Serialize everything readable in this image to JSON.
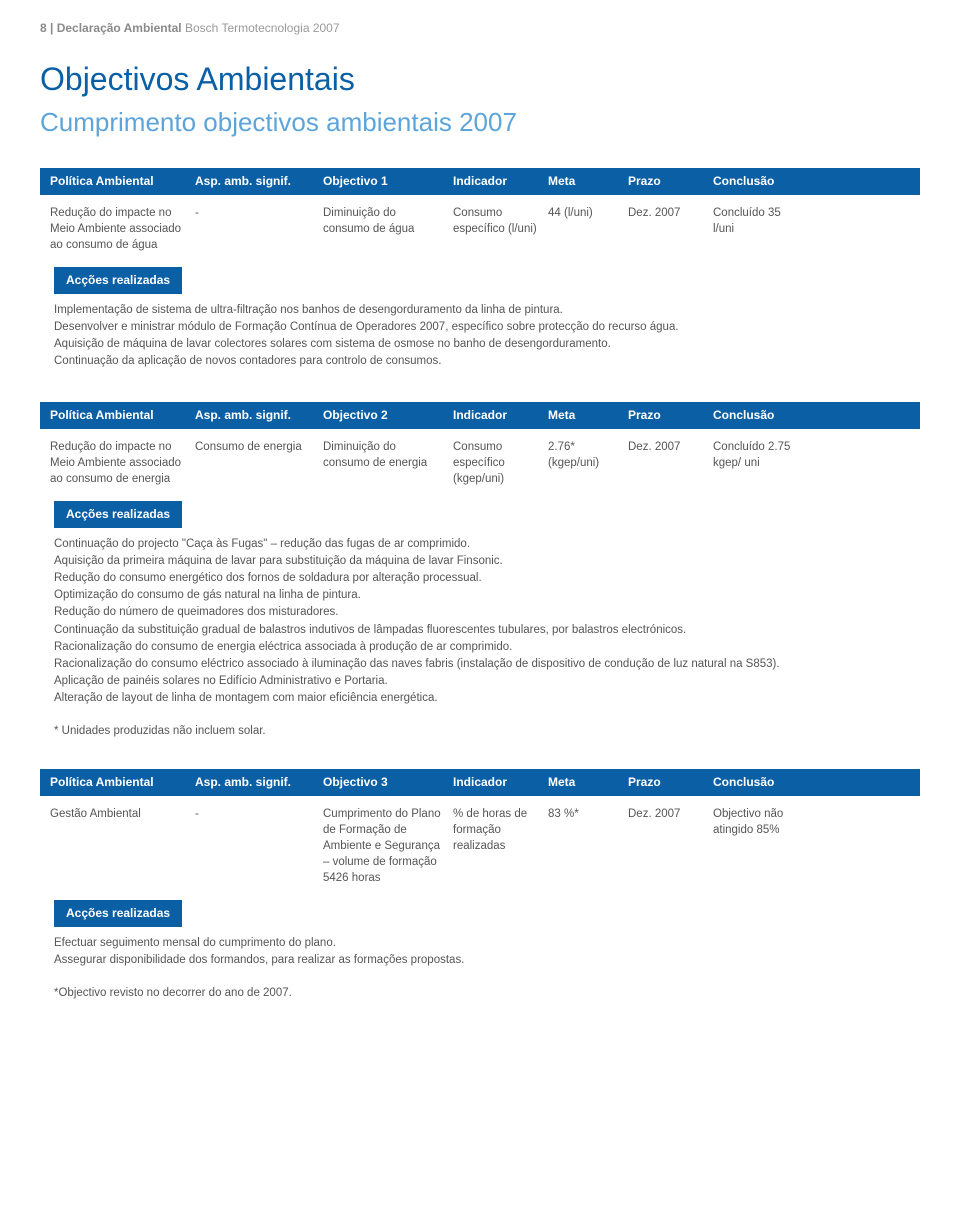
{
  "colors": {
    "header_bg": "#0a5fa5",
    "header_text": "#ffffff",
    "title_color": "#0a5fa5",
    "subtitle_color": "#5da5d8",
    "body_text": "#555555",
    "page_header_text": "#9a9a9a"
  },
  "page_header": {
    "prefix": "8 | Declaração Ambiental",
    "suffix": " Bosch Termotecnologia 2007"
  },
  "title": "Objectivos Ambientais",
  "subtitle": "Cumprimento objectivos ambientais 2007",
  "column_labels": {
    "politica": "Política Ambiental",
    "asp": "Asp. amb. signif.",
    "indicador": "Indicador",
    "meta": "Meta",
    "prazo": "Prazo",
    "conclusao": "Conclusão"
  },
  "actions_label": "Acções realizadas",
  "objectives": [
    {
      "obj_label": "Objectivo 1",
      "politica": "Redução do impacte no Meio Ambiente associado ao consumo de água",
      "asp": "-",
      "objectivo": "Diminuição do consumo de água",
      "indicador": "Consumo específico (l/uni)",
      "meta": "44 (l/uni)",
      "prazo": "Dez. 2007",
      "conclusao": "Concluído 35 l/uni",
      "actions": [
        "Implementação de sistema de ultra-filtração nos banhos de desengorduramento da linha de pintura.",
        "Desenvolver e ministrar módulo de Formação Contínua de Operadores 2007, específico sobre protecção do recurso água.",
        "Aquisição de máquina de lavar colectores solares com sistema de osmose no banho de desengorduramento.",
        "Continuação da aplicação de novos contadores para controlo de consumos."
      ],
      "footnote": ""
    },
    {
      "obj_label": "Objectivo 2",
      "politica": "Redução do impacte no Meio Ambiente associado ao consumo de energia",
      "asp": "Consumo de energia",
      "objectivo": "Diminuição do consumo de energia",
      "indicador": "Consumo específico (kgep/uni)",
      "meta": "2.76* (kgep/uni)",
      "prazo": "Dez. 2007",
      "conclusao": "Concluído 2.75 kgep/ uni",
      "actions": [
        "Continuação do projecto \"Caça às Fugas\" – redução das fugas de ar comprimido.",
        "Aquisição da primeira máquina de lavar para substituição da máquina de lavar Finsonic.",
        "Redução do consumo energético dos fornos de soldadura por alteração processual.",
        "Optimização do consumo de gás natural na linha de pintura.",
        "Redução do número de queimadores dos misturadores.",
        "Continuação da substituição gradual de balastros indutivos de lâmpadas fluorescentes tubulares, por balastros electrónicos.",
        "Racionalização do consumo de energia eléctrica associada à produção de ar comprimido.",
        "Racionalização do consumo eléctrico associado à iluminação das naves fabris (instalação de dispositivo de condução de luz natural na S853).",
        "Aplicação de painéis solares no Edifício Administrativo e Portaria.",
        "Alteração de layout de linha de montagem com maior eficiência energética."
      ],
      "footnote": "* Unidades produzidas não incluem solar."
    },
    {
      "obj_label": "Objectivo 3",
      "politica": "Gestão Ambiental",
      "asp": "-",
      "objectivo": "Cumprimento do Plano de Formação de Ambiente e Segurança – volume de formação 5426 horas",
      "indicador": "% de horas de formação realizadas",
      "meta": "83 %*",
      "prazo": "Dez. 2007",
      "conclusao": "Objectivo não atingido 85%",
      "actions": [
        "Efectuar seguimento mensal do cumprimento do plano.",
        "Assegurar disponibilidade dos formandos, para realizar as formações propostas."
      ],
      "footnote": "*Objectivo revisto no decorrer do ano de 2007."
    }
  ]
}
